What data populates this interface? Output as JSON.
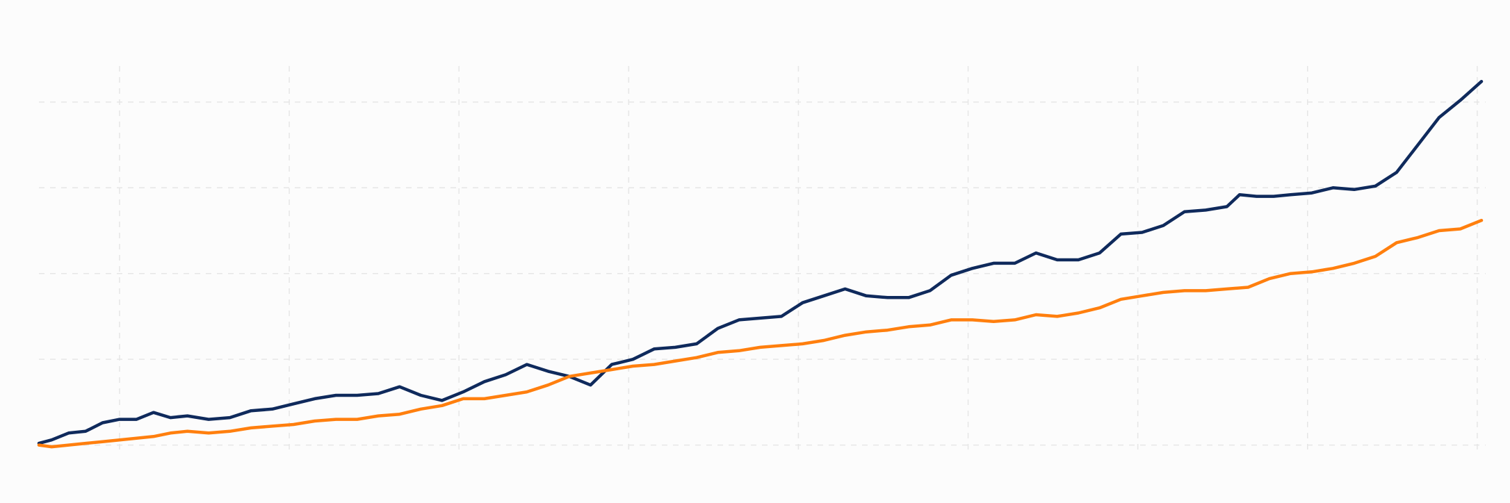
{
  "chart_data": {
    "type": "line",
    "title": "",
    "xlabel": "",
    "ylabel": "",
    "grid": true,
    "legend": "none",
    "x_range": [
      0,
      340
    ],
    "y_range": [
      -3,
      221
    ],
    "x_gridlines": [
      19,
      59,
      99,
      139,
      179,
      219,
      259,
      299,
      339
    ],
    "y_gridlines": [
      0,
      50,
      100,
      150,
      200
    ],
    "colors": {
      "background": "#fcfcfc",
      "grid": "#e6e6e6"
    },
    "series": [
      {
        "color": "#0f2a5c",
        "x": [
          0,
          3,
          7,
          11,
          15,
          19,
          23,
          27,
          31,
          35,
          40,
          45,
          50,
          55,
          60,
          65,
          70,
          75,
          80,
          85,
          90,
          95,
          100,
          105,
          110,
          115,
          120,
          125,
          130,
          135,
          140,
          145,
          150,
          155,
          160,
          165,
          170,
          175,
          180,
          185,
          190,
          195,
          200,
          205,
          210,
          215,
          220,
          225,
          230,
          235,
          240,
          245,
          250,
          255,
          260,
          265,
          270,
          275,
          280,
          283,
          287,
          291,
          295,
          300,
          305,
          310,
          315,
          320,
          325,
          330,
          335,
          340
        ],
        "values": [
          1,
          3,
          7,
          8,
          13,
          15,
          15,
          19,
          16,
          17,
          15,
          16,
          20,
          21,
          24,
          27,
          29,
          29,
          30,
          34,
          29,
          26,
          31,
          37,
          41,
          47,
          43,
          40,
          35,
          47,
          50,
          56,
          57,
          59,
          68,
          73,
          74,
          75,
          83,
          87,
          91,
          87,
          86,
          86,
          90,
          99,
          103,
          106,
          106,
          112,
          108,
          108,
          112,
          123,
          124,
          128,
          136,
          137,
          139,
          146,
          145,
          145,
          146,
          147,
          150,
          149,
          151,
          159,
          175,
          191,
          201,
          212
        ]
      },
      {
        "color": "#ff7f0e",
        "x": [
          0,
          3,
          7,
          11,
          15,
          19,
          23,
          27,
          31,
          35,
          40,
          45,
          50,
          55,
          60,
          65,
          70,
          75,
          80,
          85,
          90,
          95,
          100,
          105,
          110,
          115,
          120,
          125,
          130,
          135,
          140,
          145,
          150,
          155,
          160,
          165,
          170,
          175,
          180,
          185,
          190,
          195,
          200,
          205,
          210,
          215,
          220,
          225,
          230,
          235,
          240,
          245,
          250,
          255,
          260,
          265,
          270,
          275,
          280,
          285,
          290,
          295,
          300,
          305,
          310,
          315,
          320,
          325,
          330,
          335,
          340
        ],
        "values": [
          0,
          -1,
          0,
          1,
          2,
          3,
          4,
          5,
          7,
          8,
          7,
          8,
          10,
          11,
          12,
          14,
          15,
          15,
          17,
          18,
          21,
          23,
          27,
          27,
          29,
          31,
          35,
          40,
          42,
          44,
          46,
          47,
          49,
          51,
          54,
          55,
          57,
          58,
          59,
          61,
          64,
          66,
          67,
          69,
          70,
          73,
          73,
          72,
          73,
          76,
          75,
          77,
          80,
          85,
          87,
          89,
          90,
          90,
          91,
          92,
          97,
          100,
          101,
          103,
          106,
          110,
          118,
          121,
          125,
          126,
          131
        ]
      }
    ]
  }
}
